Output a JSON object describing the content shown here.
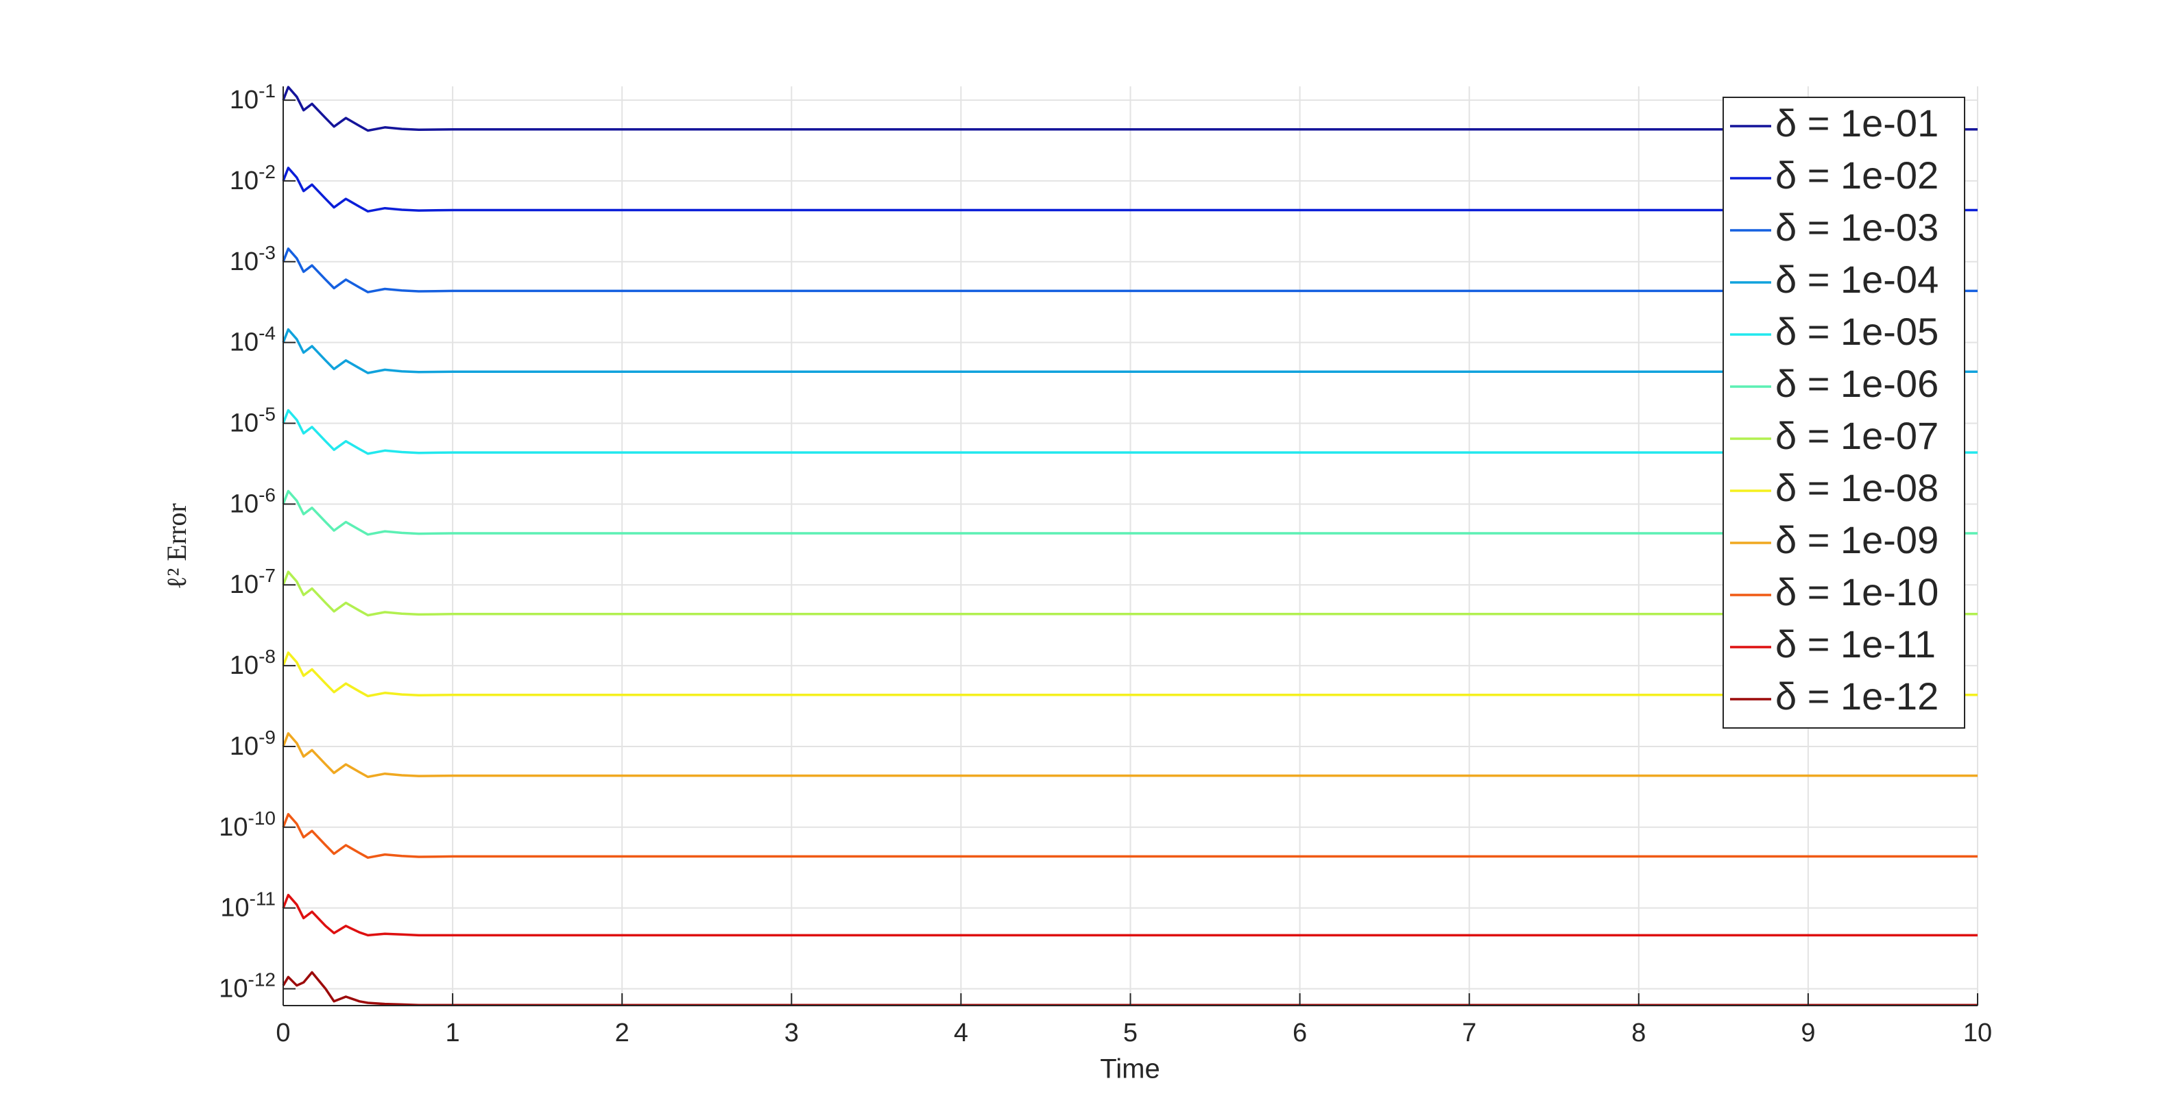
{
  "chart_data": {
    "type": "line",
    "xlabel": "Time",
    "ylabel": "ℓ² Error",
    "yscale": "log",
    "grid": true,
    "legend_position": "upper-right",
    "xlim": [
      0,
      10
    ],
    "xticks": [
      0,
      1,
      2,
      3,
      4,
      5,
      6,
      7,
      8,
      9,
      10
    ],
    "ylim": [
      6.2e-13,
      0.148
    ],
    "yticks": [
      {
        "value": 1e-12,
        "label": "10^-12"
      },
      {
        "value": 1e-11,
        "label": "10^-11"
      },
      {
        "value": 1e-10,
        "label": "10^-10"
      },
      {
        "value": 1e-09,
        "label": "10^-9"
      },
      {
        "value": 1e-08,
        "label": "10^-8"
      },
      {
        "value": 1e-07,
        "label": "10^-7"
      },
      {
        "value": 1e-06,
        "label": "10^-6"
      },
      {
        "value": 1e-05,
        "label": "10^-5"
      },
      {
        "value": 0.0001,
        "label": "10^-4"
      },
      {
        "value": 0.001,
        "label": "10^-3"
      },
      {
        "value": 0.01,
        "label": "10^-2"
      },
      {
        "value": 0.1,
        "label": "10^-1"
      }
    ],
    "x": [
      0,
      0.03,
      0.08,
      0.12,
      0.17,
      0.25,
      0.3,
      0.37,
      0.45,
      0.5,
      0.6,
      0.7,
      0.8,
      1,
      10
    ],
    "series": [
      {
        "name": "δ = 1e-01",
        "color": "#14149a",
        "values": [
          0.1,
          0.145,
          0.11,
          0.075,
          0.09,
          0.06,
          0.047,
          0.06,
          0.048,
          0.042,
          0.046,
          0.044,
          0.043,
          0.0435,
          0.0435
        ]
      },
      {
        "name": "δ = 1e-02",
        "color": "#0a1ed8",
        "values": [
          0.01,
          0.0145,
          0.011,
          0.0075,
          0.009,
          0.006,
          0.0047,
          0.006,
          0.0048,
          0.0042,
          0.0046,
          0.0044,
          0.0043,
          0.00435,
          0.00435
        ]
      },
      {
        "name": "δ = 1e-03",
        "color": "#1560e0",
        "values": [
          0.001,
          0.00145,
          0.0011,
          0.00075,
          0.0009,
          0.0006,
          0.00047,
          0.0006,
          0.00048,
          0.00042,
          0.00046,
          0.00044,
          0.00043,
          0.000435,
          0.000435
        ]
      },
      {
        "name": "δ = 1e-04",
        "color": "#10a2dc",
        "values": [
          0.0001,
          0.000145,
          0.00011,
          7.5e-05,
          9e-05,
          6e-05,
          4.7e-05,
          6e-05,
          4.8e-05,
          4.2e-05,
          4.6e-05,
          4.4e-05,
          4.3e-05,
          4.35e-05,
          4.35e-05
        ]
      },
      {
        "name": "δ = 1e-05",
        "color": "#22e8ee",
        "values": [
          1e-05,
          1.45e-05,
          1.1e-05,
          7.5e-06,
          9e-06,
          6e-06,
          4.7e-06,
          6e-06,
          4.8e-06,
          4.2e-06,
          4.6e-06,
          4.4e-06,
          4.3e-06,
          4.35e-06,
          4.35e-06
        ]
      },
      {
        "name": "δ = 1e-06",
        "color": "#5cf0b4",
        "values": [
          1e-06,
          1.45e-06,
          1.1e-06,
          7.5e-07,
          9e-07,
          6e-07,
          4.7e-07,
          6e-07,
          4.8e-07,
          4.2e-07,
          4.6e-07,
          4.4e-07,
          4.3e-07,
          4.35e-07,
          4.35e-07
        ]
      },
      {
        "name": "δ = 1e-07",
        "color": "#b2f050",
        "values": [
          1e-07,
          1.45e-07,
          1.1e-07,
          7.5e-08,
          9e-08,
          6e-08,
          4.7e-08,
          6e-08,
          4.8e-08,
          4.2e-08,
          4.6e-08,
          4.4e-08,
          4.3e-08,
          4.35e-08,
          4.35e-08
        ]
      },
      {
        "name": "δ = 1e-08",
        "color": "#f5f01e",
        "values": [
          1e-08,
          1.45e-08,
          1.1e-08,
          7.5e-09,
          9e-09,
          6e-09,
          4.7e-09,
          6e-09,
          4.8e-09,
          4.2e-09,
          4.6e-09,
          4.4e-09,
          4.3e-09,
          4.35e-09,
          4.35e-09
        ]
      },
      {
        "name": "δ = 1e-09",
        "color": "#f0a820",
        "values": [
          1e-09,
          1.45e-09,
          1.1e-09,
          7.5e-10,
          9e-10,
          6e-10,
          4.7e-10,
          6e-10,
          4.8e-10,
          4.2e-10,
          4.6e-10,
          4.4e-10,
          4.3e-10,
          4.35e-10,
          4.35e-10
        ]
      },
      {
        "name": "δ = 1e-10",
        "color": "#f05a14",
        "values": [
          1e-10,
          1.45e-10,
          1.1e-10,
          7.5e-11,
          9e-11,
          6e-11,
          4.7e-11,
          6e-11,
          4.8e-11,
          4.2e-11,
          4.6e-11,
          4.4e-11,
          4.3e-11,
          4.35e-11,
          4.35e-11
        ]
      },
      {
        "name": "δ = 1e-11",
        "color": "#de1010",
        "values": [
          1e-11,
          1.45e-11,
          1.1e-11,
          7.5e-12,
          9e-12,
          6e-12,
          4.9e-12,
          6e-12,
          5e-12,
          4.6e-12,
          4.8e-12,
          4.7e-12,
          4.6e-12,
          4.6e-12,
          4.6e-12
        ]
      },
      {
        "name": "δ = 1e-12",
        "color": "#9c0a0a",
        "values": [
          1.1e-12,
          1.4e-12,
          1.1e-12,
          1.2e-12,
          1.6e-12,
          1e-12,
          7e-13,
          8e-13,
          7e-13,
          6.7e-13,
          6.5e-13,
          6.4e-13,
          6.3e-13,
          6.3e-13,
          6.3e-13
        ]
      }
    ]
  }
}
